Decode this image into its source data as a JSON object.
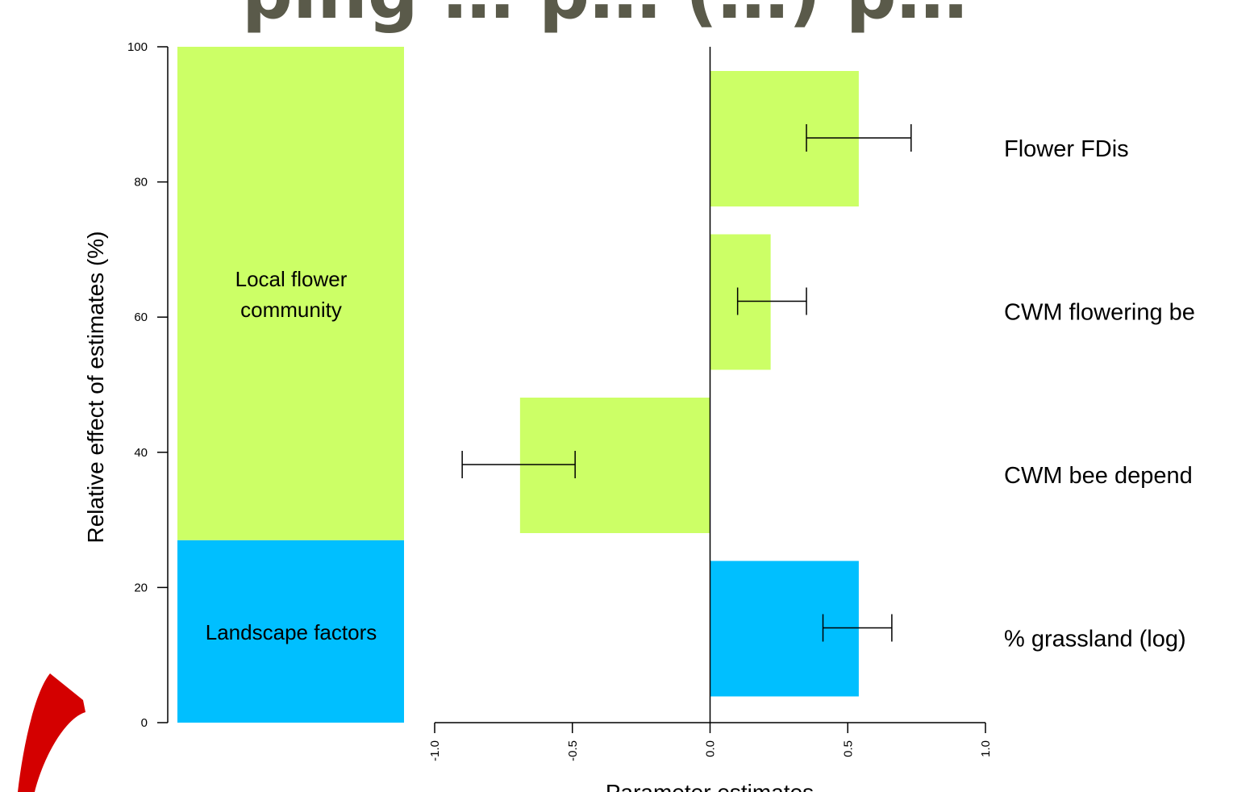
{
  "title": "ping … p… (…) p…",
  "colors": {
    "local": "#ccff66",
    "landscape": "#00bfff",
    "arrow": "#d40000",
    "title": "#5a5a4a"
  },
  "chart_data": [
    {
      "type": "bar",
      "stacked": true,
      "ylabel": "Relative effect of estimates (%)",
      "ylim": [
        0,
        100
      ],
      "yticks": [
        "0",
        "20",
        "40",
        "60",
        "80",
        "100"
      ],
      "series": [
        {
          "name": "Landscape factors",
          "value": 27,
          "color": "#00bfff"
        },
        {
          "name": "Local flower community",
          "value": 73,
          "color": "#ccff66"
        }
      ]
    },
    {
      "type": "bar",
      "orientation": "horizontal",
      "xlabel": "Parameter estimates",
      "xlim": [
        -1.0,
        1.0
      ],
      "xticks": [
        "-1.0",
        "-0.5",
        "0.0",
        "0.5",
        "1.0"
      ],
      "categories": [
        "Flower FDis",
        "CWM flowering be",
        "CWM bee depend",
        "% grassland (log)"
      ],
      "values": [
        0.54,
        0.22,
        -0.69,
        0.54
      ],
      "error_low": [
        0.35,
        0.1,
        -0.9,
        0.41
      ],
      "error_high": [
        0.73,
        0.35,
        -0.49,
        0.66
      ],
      "groups": [
        "local",
        "local",
        "local",
        "landscape"
      ]
    }
  ]
}
